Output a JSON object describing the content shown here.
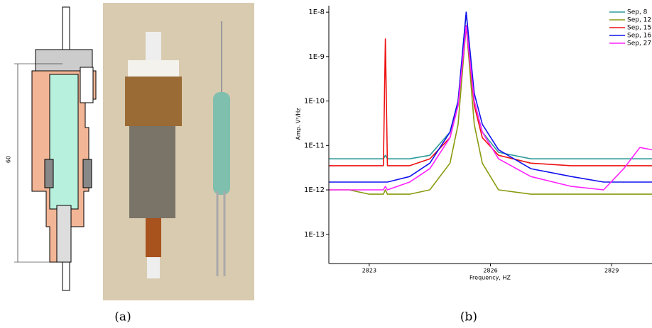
{
  "figure": {
    "panel_a": {
      "dimension_label": "60",
      "caption": "(a)"
    }
  },
  "chart_data": {
    "type": "line",
    "caption": "(b)",
    "x_label": "Frequency, HZ",
    "y_label": "Amp. V²/Hz",
    "log_y": true,
    "legend": "upper right",
    "xlim": [
      2822,
      2830
    ],
    "xticks": [
      2823,
      2826,
      2829
    ],
    "ylim": [
      2.2e-14,
      1.4e-08
    ],
    "yticks": [
      {
        "value": 1e-13,
        "label": "1E-13"
      },
      {
        "value": 1e-12,
        "label": "1E-12"
      },
      {
        "value": 1e-11,
        "label": "1E-11"
      },
      {
        "value": 1e-10,
        "label": "1E-10"
      },
      {
        "value": 1e-09,
        "label": "1E-9"
      },
      {
        "value": 1e-08,
        "label": "1E-8"
      }
    ],
    "x": [
      2822,
      2822.5,
      2823,
      2823.35,
      2823.4,
      2823.45,
      2824,
      2824.5,
      2825,
      2825.2,
      2825.4,
      2825.6,
      2825.8,
      2826.2,
      2827,
      2828,
      2828.8,
      2829.3,
      2829.7,
      2830
    ],
    "series": [
      {
        "name": "Sep, 8",
        "color": "#2e9a9a",
        "values": [
          5e-12,
          5e-12,
          5e-12,
          5e-12,
          6e-12,
          5e-12,
          5e-12,
          6e-12,
          2e-11,
          1e-10,
          1e-08,
          1e-10,
          2e-11,
          7e-12,
          5e-12,
          5e-12,
          5e-12,
          5e-12,
          5e-12,
          5e-12
        ]
      },
      {
        "name": "Sep, 12",
        "color": "#8a9a10",
        "values": [
          1e-12,
          1e-12,
          8e-13,
          8e-13,
          1e-12,
          8e-13,
          8e-13,
          1e-12,
          4e-12,
          3e-11,
          5e-09,
          3e-11,
          4e-12,
          1e-12,
          8e-13,
          8e-13,
          8e-13,
          8e-13,
          8e-13,
          8e-13
        ]
      },
      {
        "name": "Sep, 15",
        "color": "#ee1111",
        "values": [
          3.5e-12,
          3.5e-12,
          3.5e-12,
          3.5e-12,
          2.5e-09,
          3.5e-12,
          3.5e-12,
          5e-12,
          1.5e-11,
          8e-11,
          5e-09,
          8e-11,
          1.5e-11,
          6e-12,
          4e-12,
          3.5e-12,
          3.5e-12,
          3.5e-12,
          3.5e-12,
          3.5e-12
        ]
      },
      {
        "name": "Sep, 16",
        "color": "#1111ee",
        "values": [
          1.5e-12,
          1.5e-12,
          1.5e-12,
          1.5e-12,
          1.5e-12,
          1.5e-12,
          2e-12,
          4e-12,
          2e-11,
          1e-10,
          1e-08,
          1.5e-10,
          3e-11,
          8e-12,
          3e-12,
          2e-12,
          1.5e-12,
          1.5e-12,
          1.5e-12,
          1.5e-12
        ]
      },
      {
        "name": "Sep, 27",
        "color": "#ff22ff",
        "values": [
          1e-12,
          1e-12,
          1e-12,
          1e-12,
          1.2e-12,
          1e-12,
          1.5e-12,
          3e-12,
          1.5e-11,
          8e-11,
          5e-09,
          1e-10,
          2e-11,
          5e-12,
          2e-12,
          1.2e-12,
          1e-12,
          3e-12,
          9e-12,
          8e-12
        ]
      }
    ]
  }
}
